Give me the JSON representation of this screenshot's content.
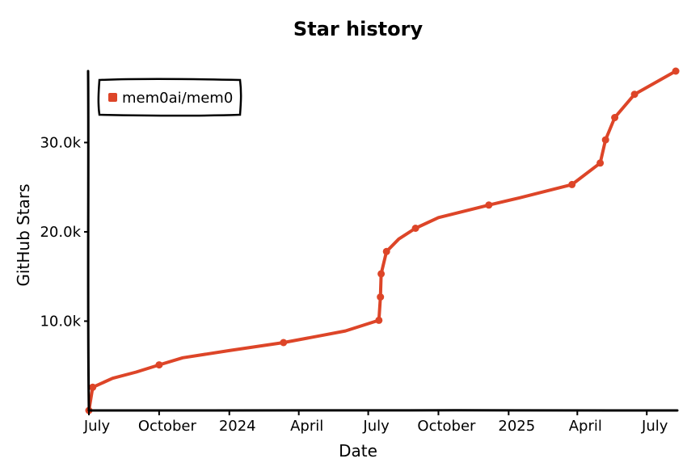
{
  "chart_data": {
    "type": "line",
    "title": "Star history",
    "xlabel": "Date",
    "ylabel": "GitHub Stars",
    "x_tick_labels": [
      "July",
      "October",
      "2024",
      "April",
      "July",
      "October",
      "2025",
      "April",
      "July"
    ],
    "x_tick_dates": [
      "2023-07-01",
      "2023-10-01",
      "2024-01-01",
      "2024-04-01",
      "2024-07-01",
      "2024-10-01",
      "2025-01-01",
      "2025-04-01",
      "2025-07-01"
    ],
    "y_ticks": [
      10000,
      20000,
      30000
    ],
    "y_tick_labels": [
      "10.0k",
      "20.0k",
      "30.0k"
    ],
    "xlim": [
      "2023-07-01",
      "2025-08-10"
    ],
    "ylim": [
      0,
      38000
    ],
    "grid": false,
    "legend": {
      "position": "top-left"
    },
    "series": [
      {
        "name": "mem0ai/mem0",
        "color": "#dd4528",
        "points": [
          {
            "x": "2023-07-01",
            "y": 0
          },
          {
            "x": "2023-07-06",
            "y": 2600
          },
          {
            "x": "2023-08-01",
            "y": 3600
          },
          {
            "x": "2023-09-01",
            "y": 4300
          },
          {
            "x": "2023-10-01",
            "y": 5100
          },
          {
            "x": "2023-11-01",
            "y": 5900
          },
          {
            "x": "2024-01-01",
            "y": 6700
          },
          {
            "x": "2024-03-12",
            "y": 7600
          },
          {
            "x": "2024-05-01",
            "y": 8400
          },
          {
            "x": "2024-06-01",
            "y": 8900
          },
          {
            "x": "2024-07-15",
            "y": 10100
          },
          {
            "x": "2024-07-17",
            "y": 12700
          },
          {
            "x": "2024-07-18",
            "y": 15300
          },
          {
            "x": "2024-07-25",
            "y": 17800
          },
          {
            "x": "2024-08-10",
            "y": 19200
          },
          {
            "x": "2024-09-01",
            "y": 20400
          },
          {
            "x": "2024-10-01",
            "y": 21600
          },
          {
            "x": "2024-12-06",
            "y": 23000
          },
          {
            "x": "2025-01-15",
            "y": 23800
          },
          {
            "x": "2025-03-25",
            "y": 25300
          },
          {
            "x": "2025-05-01",
            "y": 27700
          },
          {
            "x": "2025-05-08",
            "y": 30300
          },
          {
            "x": "2025-05-20",
            "y": 32800
          },
          {
            "x": "2025-06-15",
            "y": 35400
          },
          {
            "x": "2025-08-08",
            "y": 38000
          }
        ],
        "markers": [
          {
            "x": "2023-07-01",
            "y": 0
          },
          {
            "x": "2023-07-06",
            "y": 2600
          },
          {
            "x": "2023-10-01",
            "y": 5100
          },
          {
            "x": "2024-03-12",
            "y": 7600
          },
          {
            "x": "2024-07-15",
            "y": 10100
          },
          {
            "x": "2024-07-17",
            "y": 12700
          },
          {
            "x": "2024-07-18",
            "y": 15300
          },
          {
            "x": "2024-07-25",
            "y": 17800
          },
          {
            "x": "2024-09-01",
            "y": 20400
          },
          {
            "x": "2024-12-06",
            "y": 23000
          },
          {
            "x": "2025-03-25",
            "y": 25300
          },
          {
            "x": "2025-05-01",
            "y": 27700
          },
          {
            "x": "2025-05-08",
            "y": 30300
          },
          {
            "x": "2025-05-20",
            "y": 32800
          },
          {
            "x": "2025-06-15",
            "y": 35400
          },
          {
            "x": "2025-08-08",
            "y": 38000
          }
        ]
      }
    ]
  }
}
